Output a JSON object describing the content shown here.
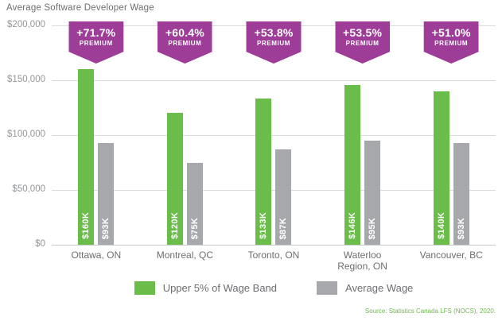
{
  "title": "Average Software Developer Wage",
  "source": "Source: Statistics Canada LFS (NOCS), 2020.",
  "colors": {
    "green": "#6bbd4a",
    "gray": "#a6a8ab",
    "purple": "#9e3d98",
    "title-text": "#6d6e71",
    "axis-text": "#939598",
    "gridline": "#d9dadb"
  },
  "y_axis": {
    "ticks": [
      "$200,000",
      "$150,000",
      "$100,000",
      "$50,000",
      "$0"
    ]
  },
  "legend": {
    "items": [
      {
        "label": "Upper 5% of Wage Band",
        "color": "#6bbd4a"
      },
      {
        "label": "Average Wage",
        "color": "#a6a8ab"
      }
    ]
  },
  "chart_data": {
    "type": "bar",
    "title": "Average Software Developer Wage",
    "xlabel": "",
    "ylabel": "",
    "ylim": [
      0,
      200000
    ],
    "grid": true,
    "legend_position": "bottom",
    "categories": [
      "Ottawa, ON",
      "Montreal, QC",
      "Toronto, ON",
      "Waterloo Region, ON",
      "Vancouver, BC"
    ],
    "series": [
      {
        "name": "Upper 5% of Wage Band",
        "color": "#6bbd4a",
        "values": [
          160000,
          120000,
          133000,
          146000,
          140000
        ],
        "labels": [
          "$160K",
          "$120K",
          "$133K",
          "$146K",
          "$140K"
        ]
      },
      {
        "name": "Average Wage",
        "color": "#a6a8ab",
        "values": [
          93000,
          75000,
          87000,
          95000,
          93000
        ],
        "labels": [
          "$93K",
          "$75K",
          "$87K",
          "$95K",
          "$93K"
        ]
      }
    ],
    "premiums": [
      "+71.7%",
      "+60.4%",
      "+53.8%",
      "+53.5%",
      "+51.0%"
    ],
    "premium_label": "PREMIUM"
  }
}
